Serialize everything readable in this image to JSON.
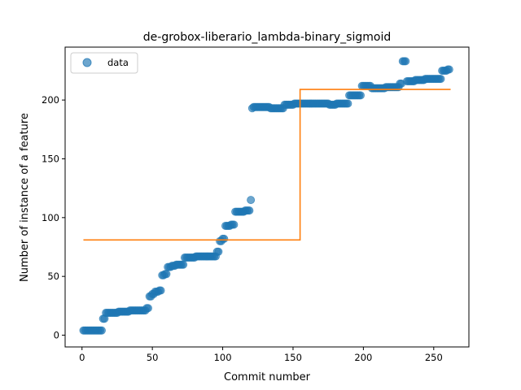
{
  "chart_data": {
    "type": "scatter",
    "title": "de-grobox-liberario_lambda-binary_sigmoid",
    "xlabel": "Commit number",
    "ylabel": "Number of instance of a feature",
    "xlim": [
      -12,
      275
    ],
    "ylim": [
      -10,
      245
    ],
    "xticks": [
      0,
      50,
      100,
      150,
      200,
      250
    ],
    "yticks": [
      0,
      50,
      100,
      150,
      200
    ],
    "legend": {
      "placement": "top-left",
      "entries": [
        "data"
      ]
    },
    "colors": {
      "points": "#1f77b4",
      "fit": "#ff7f0e"
    },
    "grid": false,
    "series": [
      {
        "name": "data",
        "kind": "scatter",
        "segments": [
          [
            1,
            14,
            4
          ],
          [
            15,
            16,
            14
          ],
          [
            17,
            25,
            19
          ],
          [
            26,
            33,
            20
          ],
          [
            34,
            45,
            21
          ],
          [
            46,
            47,
            23
          ],
          [
            48,
            49,
            33
          ],
          [
            50,
            51,
            35
          ],
          [
            52,
            54,
            37
          ],
          [
            55,
            56,
            38
          ],
          [
            57,
            58,
            51
          ],
          [
            59,
            60,
            52
          ],
          [
            61,
            63,
            58
          ],
          [
            64,
            66,
            59
          ],
          [
            67,
            72,
            60
          ],
          [
            73,
            80,
            66
          ],
          [
            81,
            95,
            67
          ],
          [
            96,
            97,
            71
          ],
          [
            98,
            99,
            80
          ],
          [
            100,
            101,
            82
          ],
          [
            102,
            105,
            93
          ],
          [
            106,
            108,
            94
          ],
          [
            109,
            115,
            105
          ],
          [
            116,
            119,
            106
          ],
          [
            120,
            120,
            115
          ],
          [
            121,
            121,
            193
          ],
          [
            122,
            127,
            194
          ],
          [
            128,
            133,
            194
          ],
          [
            134,
            143,
            193
          ],
          [
            144,
            150,
            196
          ],
          [
            151,
            160,
            197
          ],
          [
            161,
            175,
            197
          ],
          [
            176,
            180,
            196
          ],
          [
            181,
            189,
            197
          ],
          [
            190,
            198,
            204
          ],
          [
            199,
            205,
            212
          ],
          [
            206,
            215,
            210
          ],
          [
            216,
            225,
            211
          ],
          [
            226,
            227,
            214
          ],
          [
            228,
            230,
            233
          ],
          [
            231,
            236,
            216
          ],
          [
            237,
            243,
            217
          ],
          [
            244,
            255,
            218
          ],
          [
            256,
            259,
            225
          ],
          [
            260,
            261,
            226
          ]
        ]
      },
      {
        "name": "",
        "kind": "line",
        "x": [
          1,
          155,
          155,
          262
        ],
        "y": [
          81,
          81,
          209,
          209
        ]
      }
    ]
  }
}
